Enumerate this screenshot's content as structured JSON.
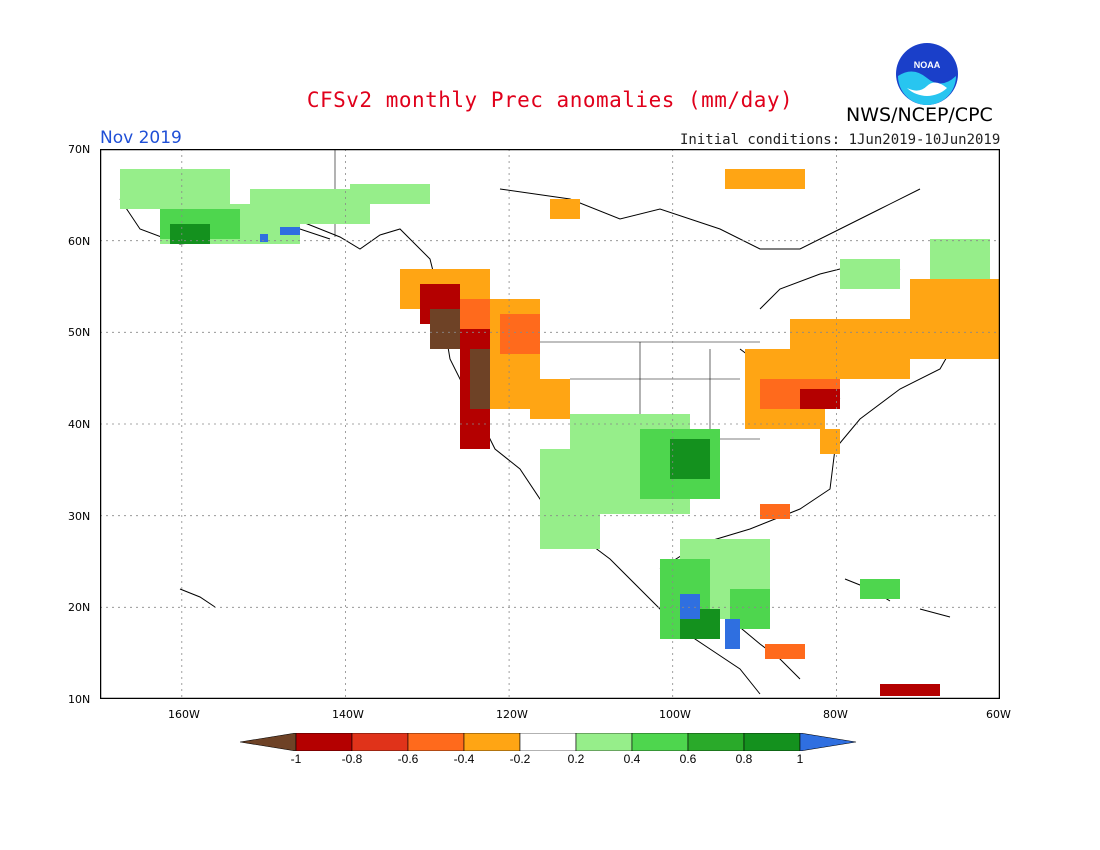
{
  "title": "CFSv2 monthly Prec anomalies (mm/day)",
  "agency": "NWS/NCEP/CPC",
  "logo_text": "NOAA",
  "month": "Nov 2019",
  "initial_conditions": "Initial conditions:  1Jun2019-10Jun2019",
  "lat_labels": [
    "70N",
    "60N",
    "50N",
    "40N",
    "30N",
    "20N",
    "10N"
  ],
  "lon_labels": [
    "160W",
    "140W",
    "120W",
    "100W",
    "80W",
    "60W"
  ],
  "colorbar": {
    "labels": [
      "-1",
      "-0.8",
      "-0.6",
      "-0.4",
      "-0.2",
      "0.2",
      "0.4",
      "0.6",
      "0.8",
      "1"
    ],
    "colors": [
      "#6e4226",
      "#b40000",
      "#e0331a",
      "#ff6a1c",
      "#ffa514",
      "#ffffff",
      "#96ee8a",
      "#4ed64e",
      "#2aaa2a",
      "#14911e",
      "#2f6fe0"
    ]
  },
  "map": {
    "region": "North America",
    "extent_lon": [
      -170,
      -60
    ],
    "extent_lat": [
      10,
      70
    ],
    "anomaly_regions": [
      {
        "area": "Pacific Northwest coast",
        "category": "dry",
        "value": "-1"
      },
      {
        "area": "Northern Rockies / interior West",
        "category": "dry",
        "value": "-0.6"
      },
      {
        "area": "Great Lakes region",
        "category": "dry",
        "value": "-0.6"
      },
      {
        "area": "Eastern Canada",
        "category": "dry",
        "value": "-0.4"
      },
      {
        "area": "Alaska",
        "category": "wet",
        "value": "0.4"
      },
      {
        "area": "Southern Plains",
        "category": "wet",
        "value": "0.6"
      },
      {
        "area": "Southern Mexico",
        "category": "wet",
        "value": "1"
      }
    ]
  }
}
